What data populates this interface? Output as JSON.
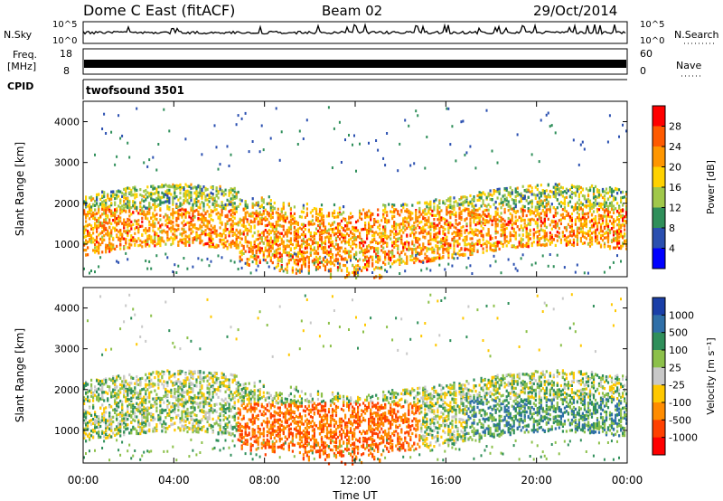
{
  "header": {
    "station": "Dome C East (fitACF)",
    "beam": "Beam 02",
    "date": "29/Oct/2014"
  },
  "panels": {
    "nsky": {
      "label": "N.Sky",
      "ticks_left": [
        "10^5",
        "10^0"
      ],
      "ticks_right": [
        "10^5",
        "10^0"
      ],
      "right_label": "N.Search"
    },
    "freq": {
      "label_line1": "Freq.",
      "label_line2": "[MHz]",
      "ticks_left": [
        "18",
        "8"
      ],
      "ticks_right": [
        "60",
        "0"
      ],
      "right_label": "Nave"
    },
    "cpid": {
      "label": "CPID",
      "program": "twofsound 3501"
    }
  },
  "chart_data": [
    {
      "type": "heatmap",
      "name": "power",
      "xlabel": "Time UT",
      "ylabel": "Slant Range [km]",
      "x_ticks": [
        "00:00",
        "04:00",
        "08:00",
        "12:00",
        "16:00",
        "20:00",
        "00:00"
      ],
      "y_ticks": [
        1000,
        2000,
        3000,
        4000
      ],
      "ylim": [
        200,
        4500
      ],
      "colorbar": {
        "label": "Power [dB]",
        "ticks": [
          "28",
          "24",
          "20",
          "16",
          "12",
          "8",
          "4"
        ],
        "colors": [
          "#ff0000",
          "#ff5a00",
          "#ff9600",
          "#ffd200",
          "#a0c84a",
          "#2f8f5a",
          "#2a4fb0",
          "#0000ff"
        ]
      }
    },
    {
      "type": "heatmap",
      "name": "velocity",
      "xlabel": "Time UT",
      "ylabel": "Slant Range [km]",
      "x_ticks": [
        "00:00",
        "04:00",
        "08:00",
        "12:00",
        "16:00",
        "20:00",
        "00:00"
      ],
      "y_ticks": [
        1000,
        2000,
        3000,
        4000
      ],
      "ylim": [
        200,
        4500
      ],
      "colorbar": {
        "label": "Velocity [m s⁻¹]",
        "ticks": [
          "1000",
          "500",
          "100",
          "25",
          "-25",
          "-100",
          "-500",
          "-1000"
        ],
        "colors": [
          "#1a3fa8",
          "#2f6fa8",
          "#2f8f5a",
          "#8cc04a",
          "#c8c8c8",
          "#ffc800",
          "#ff8c00",
          "#ff4000",
          "#ff0000"
        ]
      }
    }
  ]
}
